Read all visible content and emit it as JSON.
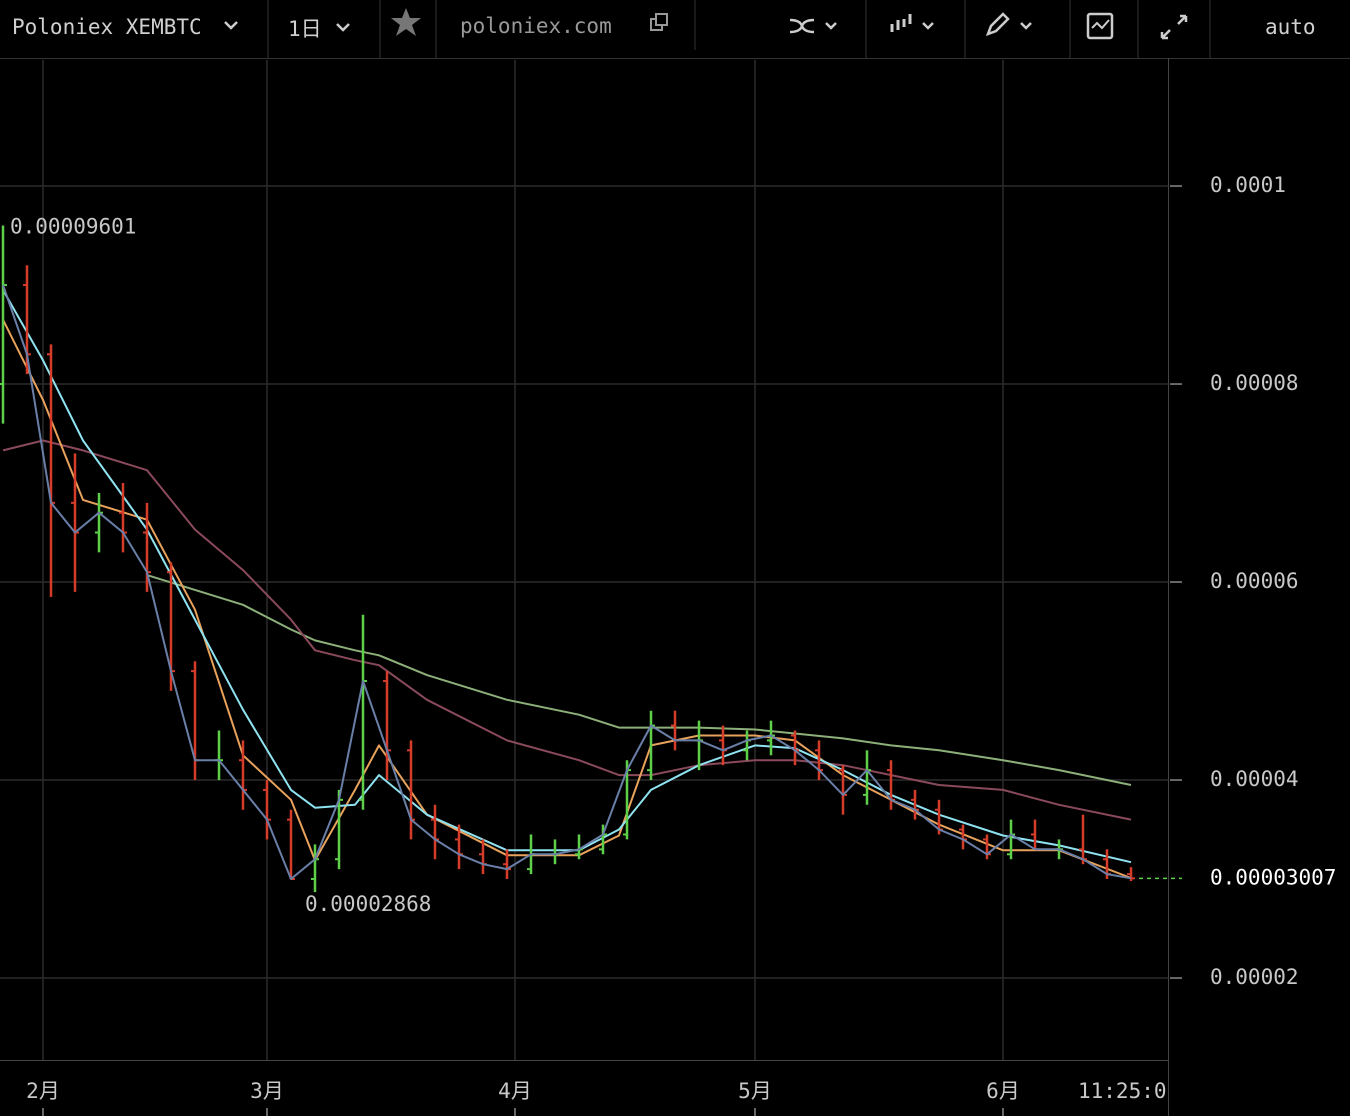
{
  "toolbar": {
    "symbol": "Poloniex XEMBTC",
    "interval": "1日",
    "site": "poloniex.com",
    "scale_mode": "auto"
  },
  "clock": "11:25:0",
  "chart_data": {
    "type": "ohlc",
    "x": [
      -5,
      -2,
      1,
      4,
      7,
      10,
      13,
      16,
      19,
      22,
      25,
      28,
      31,
      34,
      37,
      40,
      43,
      46,
      49,
      52,
      55,
      58,
      61,
      64,
      67,
      70,
      73,
      76,
      79,
      82,
      85,
      88,
      91,
      94,
      97,
      100,
      103,
      106,
      109,
      112,
      115,
      118,
      121,
      124,
      127,
      130,
      133,
      136
    ],
    "open": [
      8e-05,
      9e-05,
      8.3e-05,
      6.8e-05,
      6.5e-05,
      6.7e-05,
      6.5e-05,
      6.1e-05,
      5.1e-05,
      4.2e-05,
      4.2e-05,
      3.9e-05,
      3.6e-05,
      3e-05,
      3.2e-05,
      3.8e-05,
      5e-05,
      4.3e-05,
      3.6e-05,
      3.4e-05,
      3.25e-05,
      3.15e-05,
      3.1e-05,
      3.25e-05,
      3.25e-05,
      3.3e-05,
      3.45e-05,
      4.1e-05,
      4.55e-05,
      4.4e-05,
      4.4e-05,
      4.3e-05,
      4.4e-05,
      4.45e-05,
      4.3e-05,
      4.1e-05,
      3.85e-05,
      4.1e-05,
      3.8e-05,
      3.7e-05,
      3.5e-05,
      3.4e-05,
      3.25e-05,
      3.45e-05,
      3.3e-05,
      3.3e-05,
      3.2e-05,
      3.05e-05
    ],
    "high": [
      9.601e-05,
      9.2e-05,
      8.4e-05,
      7.3e-05,
      6.9e-05,
      7e-05,
      6.8e-05,
      6.2e-05,
      5.2e-05,
      4.5e-05,
      4.4e-05,
      4e-05,
      3.7e-05,
      3.35e-05,
      3.9e-05,
      5.67e-05,
      5.1e-05,
      4.4e-05,
      3.75e-05,
      3.55e-05,
      3.4e-05,
      3.3e-05,
      3.45e-05,
      3.4e-05,
      3.45e-05,
      3.55e-05,
      4.2e-05,
      4.7e-05,
      4.7e-05,
      4.6e-05,
      4.55e-05,
      4.5e-05,
      4.6e-05,
      4.5e-05,
      4.4e-05,
      4.15e-05,
      4.3e-05,
      4.2e-05,
      3.9e-05,
      3.8e-05,
      3.55e-05,
      3.45e-05,
      3.6e-05,
      3.6e-05,
      3.4e-05,
      3.65e-05,
      3.3e-05,
      3.12e-05
    ],
    "low": [
      7.6e-05,
      8.1e-05,
      5.85e-05,
      5.9e-05,
      6.3e-05,
      6.3e-05,
      5.9e-05,
      4.9e-05,
      4e-05,
      4e-05,
      3.7e-05,
      3.4e-05,
      3e-05,
      2.868e-05,
      3.1e-05,
      3.7e-05,
      4e-05,
      3.4e-05,
      3.2e-05,
      3.1e-05,
      3.05e-05,
      3e-05,
      3.05e-05,
      3.15e-05,
      3.2e-05,
      3.25e-05,
      3.4e-05,
      4e-05,
      4.3e-05,
      4.1e-05,
      4.15e-05,
      4.2e-05,
      4.25e-05,
      4.15e-05,
      4e-05,
      3.65e-05,
      3.75e-05,
      3.7e-05,
      3.6e-05,
      3.45e-05,
      3.3e-05,
      3.2e-05,
      3.2e-05,
      3.3e-05,
      3.2e-05,
      3.15e-05,
      3e-05,
      2.98e-05
    ],
    "close": [
      9e-05,
      8.3e-05,
      6.8e-05,
      6.5e-05,
      6.7e-05,
      6.5e-05,
      6.1e-05,
      5.1e-05,
      4.2e-05,
      4.2e-05,
      3.9e-05,
      3.6e-05,
      3e-05,
      3.2e-05,
      3.8e-05,
      5e-05,
      4.3e-05,
      3.6e-05,
      3.4e-05,
      3.25e-05,
      3.15e-05,
      3.1e-05,
      3.25e-05,
      3.25e-05,
      3.3e-05,
      3.45e-05,
      4.1e-05,
      4.55e-05,
      4.4e-05,
      4.4e-05,
      4.3e-05,
      4.4e-05,
      4.45e-05,
      4.3e-05,
      4.1e-05,
      3.85e-05,
      4.1e-05,
      3.8e-05,
      3.7e-05,
      3.5e-05,
      3.4e-05,
      3.25e-05,
      3.45e-05,
      3.3e-05,
      3.3e-05,
      3.2e-05,
      3.05e-05,
      3.007e-05
    ],
    "up_color": "#5ecf48",
    "down_color": "#d63c2a",
    "close_line_color": "#6a7fa8",
    "series": [
      {
        "color": "#8fe3f0",
        "x": [
          -5,
          0,
          5,
          13,
          19,
          25,
          31,
          34,
          39,
          42,
          48,
          58,
          67,
          72,
          76,
          82,
          89,
          94,
          100,
          106,
          112,
          120,
          127,
          136
        ],
        "values": [
          8.95e-05,
          8.24e-05,
          7.43e-05,
          6.53e-05,
          5.62e-05,
          4.71e-05,
          3.9e-05,
          3.72e-05,
          3.75e-05,
          4.05e-05,
          3.65e-05,
          3.29e-05,
          3.29e-05,
          3.5e-05,
          3.9e-05,
          4.15e-05,
          4.35e-05,
          4.32e-05,
          4.1e-05,
          3.85e-05,
          3.65e-05,
          3.44e-05,
          3.34e-05,
          3.17e-05
        ]
      },
      {
        "color": "#e8a25c",
        "x": [
          -5,
          0,
          5,
          13,
          19,
          25,
          31,
          34,
          39,
          42,
          48,
          58,
          67,
          72,
          76,
          82,
          89,
          94,
          100,
          106,
          112,
          120,
          127,
          136
        ],
        "values": [
          8.65e-05,
          7.84e-05,
          6.83e-05,
          6.63e-05,
          5.72e-05,
          4.25e-05,
          3.8e-05,
          3.19e-05,
          3.9e-05,
          4.35e-05,
          3.65e-05,
          3.24e-05,
          3.24e-05,
          3.44e-05,
          4.35e-05,
          4.45e-05,
          4.45e-05,
          4.4e-05,
          4.05e-05,
          3.8e-05,
          3.55e-05,
          3.29e-05,
          3.29e-05,
          3.01e-05
        ]
      },
      {
        "color": "#8a4a5c",
        "x": [
          -5,
          0,
          5,
          13,
          19,
          25,
          31,
          34,
          39,
          42,
          48,
          58,
          67,
          72,
          76,
          82,
          89,
          94,
          100,
          106,
          112,
          120,
          127,
          136
        ],
        "values": [
          7.33e-05,
          7.43e-05,
          7.33e-05,
          7.13e-05,
          6.53e-05,
          6.12e-05,
          5.62e-05,
          5.31e-05,
          5.21e-05,
          5.16e-05,
          4.81e-05,
          4.4e-05,
          4.2e-05,
          4.05e-05,
          4.05e-05,
          4.15e-05,
          4.2e-05,
          4.2e-05,
          4.15e-05,
          4.05e-05,
          3.95e-05,
          3.9e-05,
          3.75e-05,
          3.6e-05
        ]
      },
      {
        "color": "#8db07a",
        "x": [
          -5,
          0,
          5,
          13,
          19,
          25,
          31,
          34,
          39,
          42,
          48,
          58,
          67,
          72,
          76,
          82,
          89,
          94,
          100,
          106,
          112,
          120,
          127,
          136
        ],
        "values": [
          null,
          null,
          null,
          6.07e-05,
          5.92e-05,
          5.77e-05,
          5.52e-05,
          5.41e-05,
          5.31e-05,
          5.26e-05,
          5.06e-05,
          4.81e-05,
          4.66e-05,
          4.53e-05,
          4.53e-05,
          4.53e-05,
          4.51e-05,
          4.47e-05,
          4.42e-05,
          4.35e-05,
          4.3e-05,
          4.2e-05,
          4.1e-05,
          3.95e-05
        ]
      }
    ],
    "xlim": [
      -5.375,
      140.625
    ],
    "ylim": [
      1.172e-05,
      0.00011273
    ],
    "xticks": [
      {
        "value": 0,
        "label": "2月"
      },
      {
        "value": 28,
        "label": "3月"
      },
      {
        "value": 59,
        "label": "4月"
      },
      {
        "value": 89,
        "label": "5月"
      },
      {
        "value": 120,
        "label": "6月"
      }
    ],
    "yticks": [
      2e-05,
      4e-05,
      6e-05,
      8e-05,
      0.0001
    ],
    "grid": true
  }
}
